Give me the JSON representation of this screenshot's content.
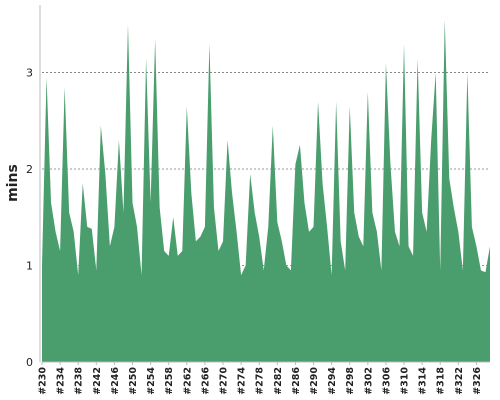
{
  "chart_data": {
    "type": "area",
    "title": "",
    "xlabel": "",
    "ylabel": "mins",
    "ylim": [
      0,
      3.7
    ],
    "yticks": [
      0,
      1,
      2,
      3
    ],
    "grid": true,
    "colors": {
      "area": "#4a9e6e",
      "grid": "#777777",
      "axis": "#bbbbbb"
    },
    "x_tick_labels": [
      "#230",
      "#234",
      "#238",
      "#242",
      "#246",
      "#250",
      "#254",
      "#258",
      "#262",
      "#266",
      "#270",
      "#274",
      "#278",
      "#282",
      "#286",
      "#290",
      "#294",
      "#298",
      "#302",
      "#306",
      "#310",
      "#314",
      "#318",
      "#322",
      "#326"
    ],
    "x": [
      "#230",
      "#231",
      "#232",
      "#233",
      "#234",
      "#235",
      "#236",
      "#237",
      "#238",
      "#239",
      "#240",
      "#241",
      "#242",
      "#243",
      "#244",
      "#245",
      "#246",
      "#247",
      "#248",
      "#249",
      "#250",
      "#251",
      "#252",
      "#253",
      "#254",
      "#255",
      "#256",
      "#257",
      "#258",
      "#259",
      "#260",
      "#261",
      "#262",
      "#263",
      "#264",
      "#265",
      "#266",
      "#267",
      "#268",
      "#269",
      "#270",
      "#271",
      "#272",
      "#273",
      "#274",
      "#275",
      "#276",
      "#277",
      "#278",
      "#279",
      "#280",
      "#281",
      "#282",
      "#283",
      "#284",
      "#285",
      "#286",
      "#287",
      "#288",
      "#289",
      "#290",
      "#291",
      "#292",
      "#293",
      "#294",
      "#295",
      "#296",
      "#297",
      "#298",
      "#299",
      "#300",
      "#301",
      "#302",
      "#303",
      "#304",
      "#305",
      "#306",
      "#307",
      "#308",
      "#309",
      "#310",
      "#311",
      "#312",
      "#313",
      "#314",
      "#315",
      "#316",
      "#317",
      "#318",
      "#319",
      "#320",
      "#321",
      "#322",
      "#323",
      "#324",
      "#325",
      "#326",
      "#327",
      "#328",
      "#329"
    ],
    "values": [
      1.0,
      2.95,
      1.65,
      1.35,
      1.15,
      2.85,
      1.55,
      1.35,
      0.9,
      1.85,
      1.4,
      1.38,
      0.95,
      2.45,
      1.95,
      1.2,
      1.4,
      2.3,
      1.55,
      3.5,
      1.65,
      1.4,
      0.9,
      3.15,
      1.65,
      3.35,
      1.6,
      1.15,
      1.1,
      1.5,
      1.1,
      1.15,
      2.65,
      1.75,
      1.25,
      1.3,
      1.4,
      3.3,
      1.6,
      1.15,
      1.25,
      2.3,
      1.75,
      1.35,
      0.9,
      1.0,
      1.95,
      1.55,
      1.3,
      0.95,
      1.4,
      2.45,
      1.45,
      1.25,
      1.0,
      0.95,
      2.05,
      2.25,
      1.65,
      1.35,
      1.4,
      2.7,
      1.85,
      1.4,
      0.9,
      2.7,
      1.25,
      0.95,
      2.65,
      1.55,
      1.3,
      1.2,
      2.8,
      1.55,
      1.35,
      0.95,
      3.1,
      2.05,
      1.35,
      1.2,
      3.3,
      1.2,
      1.1,
      3.15,
      1.55,
      1.35,
      2.3,
      3.0,
      0.95,
      3.55,
      1.9,
      1.6,
      1.35,
      0.95,
      3.0,
      1.4,
      1.2,
      0.95,
      0.93,
      1.2
    ]
  }
}
